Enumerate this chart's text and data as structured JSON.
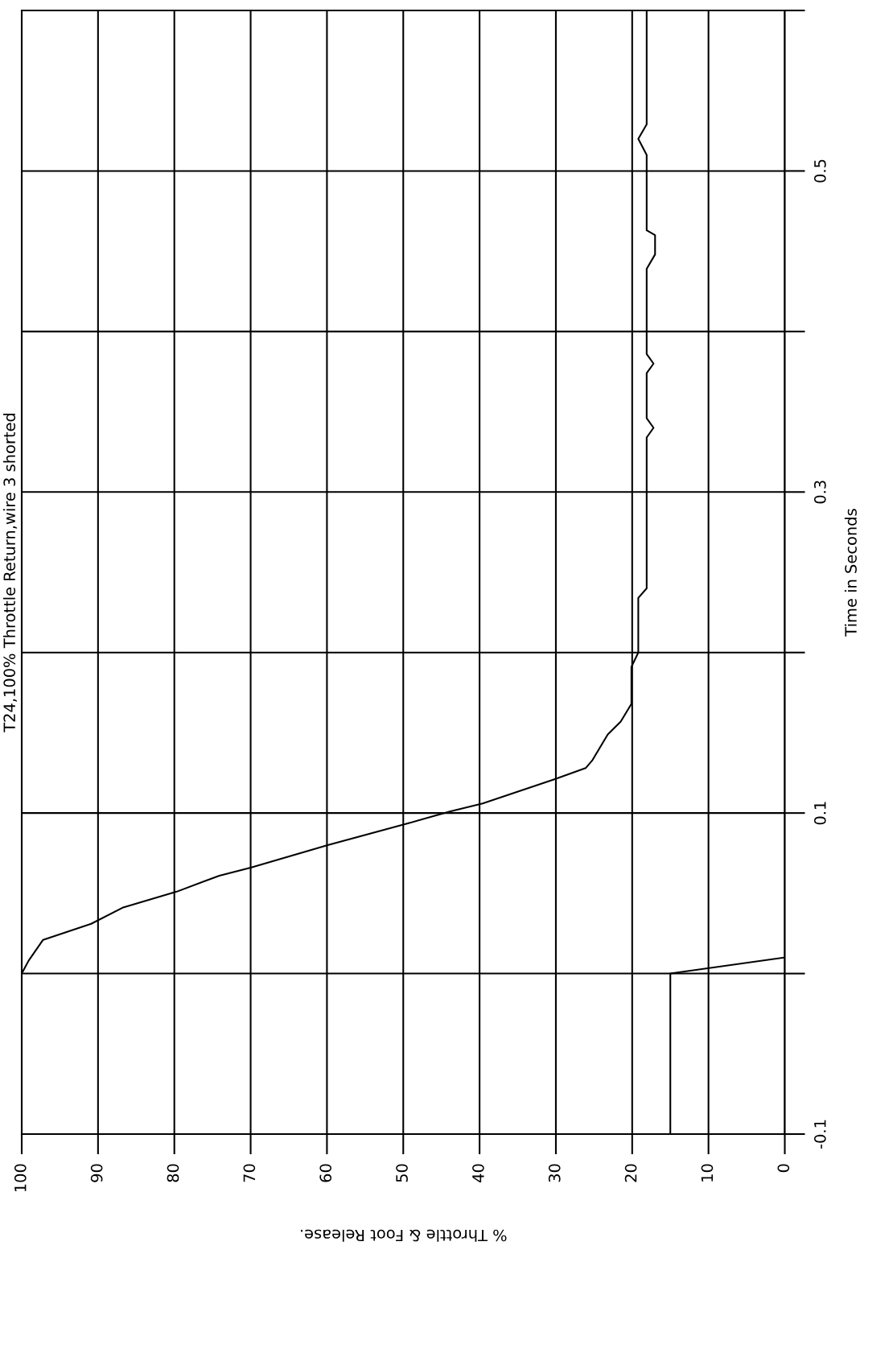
{
  "chart_data": {
    "type": "line",
    "title": "T24,100% Throttle Return,wire 3 shorted",
    "xlabel": "% Throttle & Foot Release.",
    "ylabel": "Time in Seconds",
    "xlim": [
      100,
      0
    ],
    "xticks": [
      100,
      90,
      80,
      70,
      60,
      50,
      40,
      30,
      20,
      10,
      0
    ],
    "ylim": [
      -0.1,
      0.6
    ],
    "yticks": [
      -0.1,
      {
        "value": 0,
        "label": null
      },
      0.1,
      {
        "value": 0.2,
        "label": null
      },
      0.3,
      {
        "value": 0.4,
        "label": null
      },
      0.5,
      {
        "value": 0.6,
        "label": null
      }
    ],
    "grid": true,
    "line_style": "solid",
    "marker": "none",
    "series": [
      {
        "color": "#000000",
        "x": [
          15,
          15,
          0
        ],
        "values": [
          -0.1,
          0,
          0.01
        ]
      },
      {
        "color": "#000000",
        "x": [
          100,
          99.1,
          97.2,
          90.9,
          86.8,
          79.7,
          74.1,
          70,
          59.9,
          49.8,
          43.9,
          39.6,
          30.2,
          26.1,
          25.2,
          23.2,
          21.5,
          20.1,
          20.1,
          19.2,
          19.2,
          18.1,
          18.1,
          17.2,
          18.1,
          18.1,
          17.2,
          18.1,
          18.1,
          17,
          17,
          18.1,
          18.1,
          19.2,
          18.1,
          18.1
        ],
        "values": [
          0,
          0.008,
          0.021,
          0.031,
          0.041,
          0.051,
          0.061,
          0.066,
          0.08,
          0.093,
          0.101,
          0.106,
          0.121,
          0.128,
          0.133,
          0.149,
          0.157,
          0.168,
          0.191,
          0.2,
          0.234,
          0.24,
          0.334,
          0.34,
          0.346,
          0.374,
          0.38,
          0.386,
          0.439,
          0.448,
          0.46,
          0.463,
          0.51,
          0.52,
          0.529,
          0.6
        ]
      }
    ]
  }
}
